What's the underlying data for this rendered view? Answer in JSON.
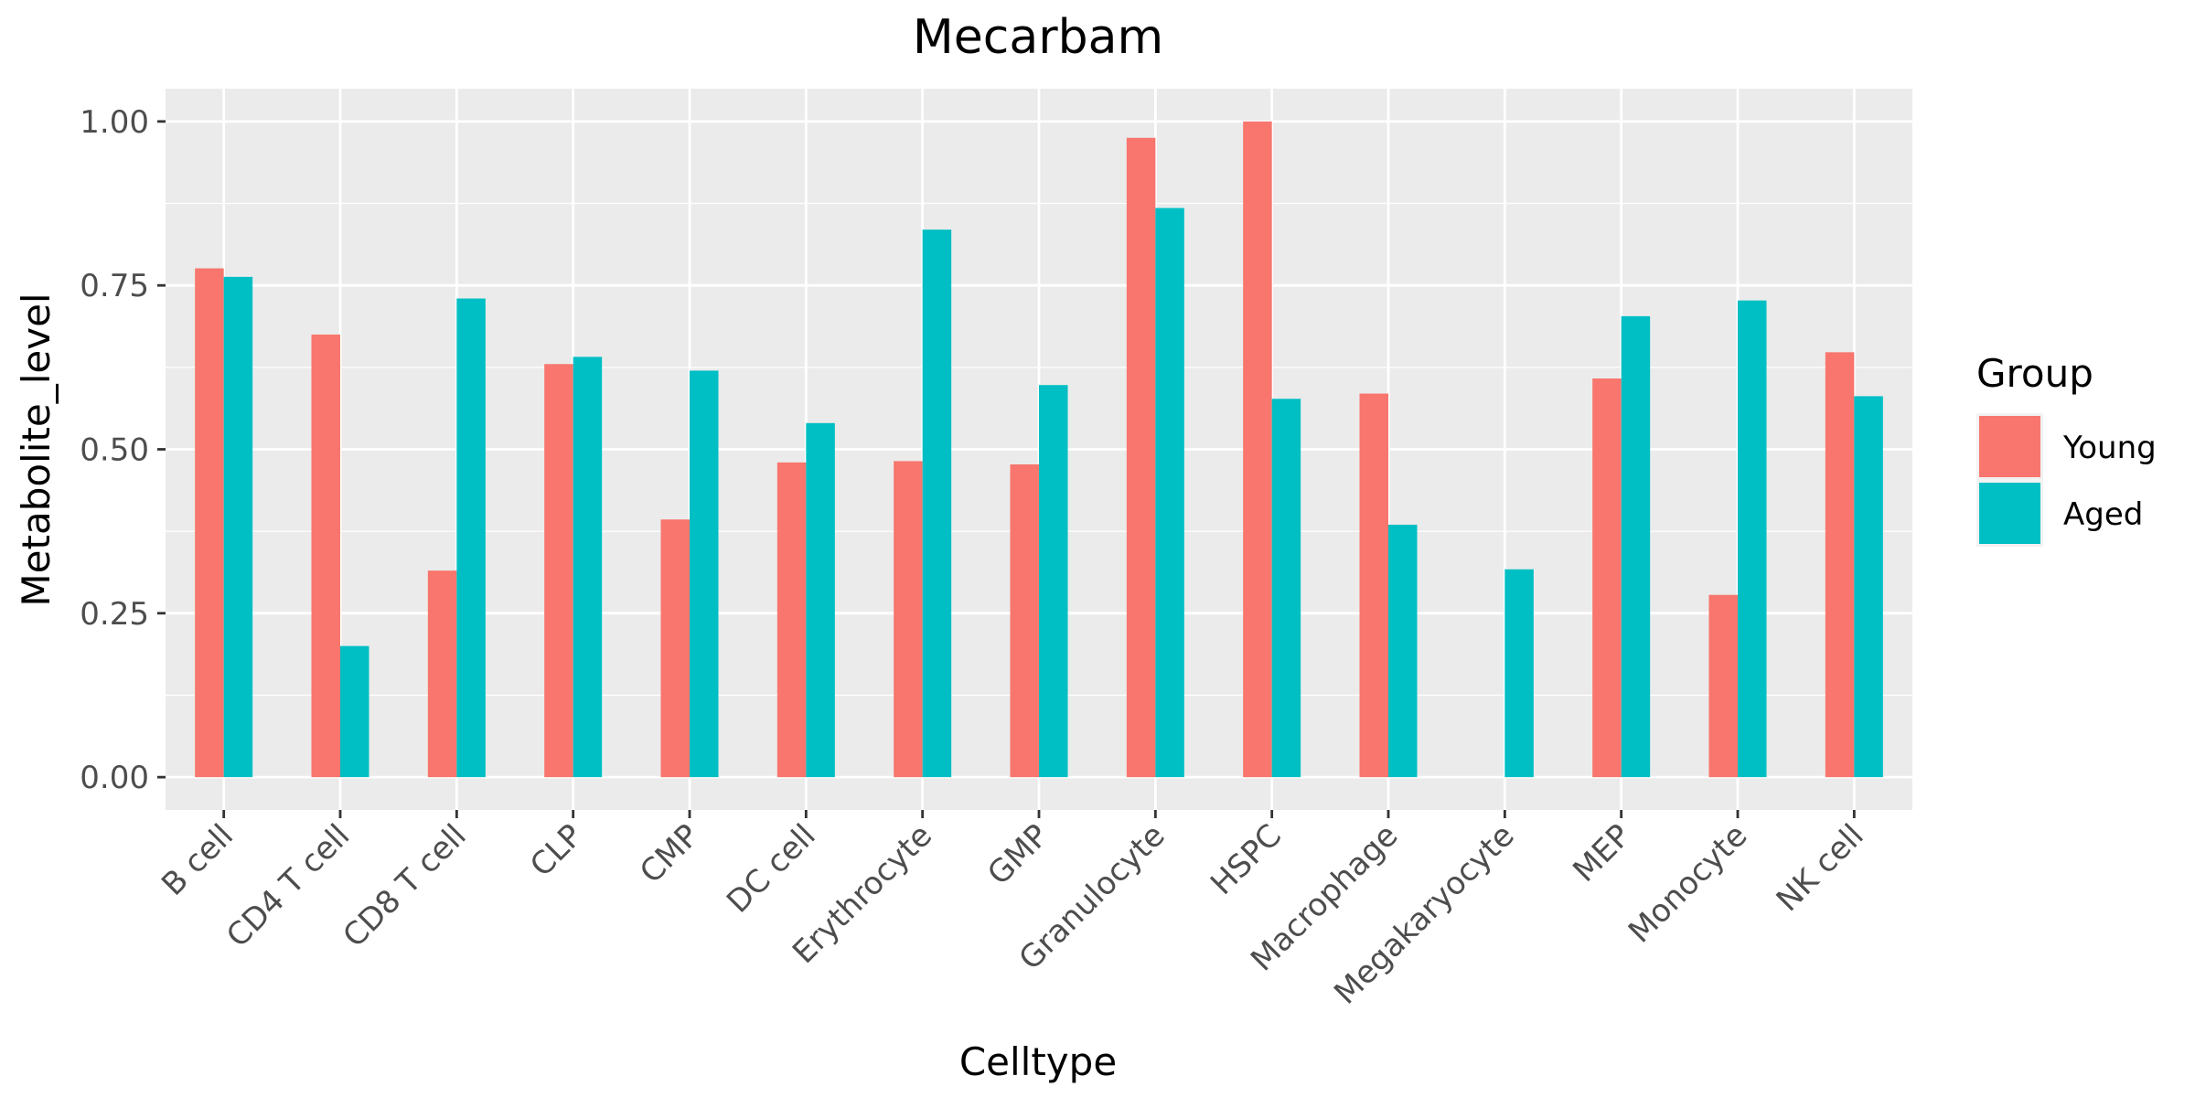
{
  "chart_data": {
    "type": "bar",
    "title": "Mecarbam",
    "xlabel": "Celltype",
    "ylabel": "Metabolite_level",
    "categories": [
      "B cell",
      "CD4 T cell",
      "CD8 T cell",
      "CLP",
      "CMP",
      "DC cell",
      "Erythrocyte",
      "GMP",
      "Granulocyte",
      "HSPC",
      "Macrophage",
      "Megakaryocyte",
      "MEP",
      "Monocyte",
      "NK cell"
    ],
    "series": [
      {
        "name": "Young",
        "color": "#F8766D",
        "values": [
          0.776,
          0.675,
          0.315,
          0.63,
          0.393,
          0.48,
          0.482,
          0.477,
          0.975,
          1.0,
          0.585,
          null,
          0.608,
          0.278,
          0.648
        ]
      },
      {
        "name": "Aged",
        "color": "#00BFC4",
        "values": [
          0.763,
          0.2,
          0.73,
          0.641,
          0.62,
          0.54,
          0.835,
          0.598,
          0.868,
          0.577,
          0.385,
          0.317,
          0.703,
          0.727,
          0.581
        ]
      }
    ],
    "ylim": [
      -0.05,
      1.05
    ],
    "yticks": [
      "0.00",
      "0.25",
      "0.50",
      "0.75",
      "1.00"
    ],
    "ytick_values": [
      0,
      0.25,
      0.5,
      0.75,
      1.0
    ],
    "grid": true,
    "legend": {
      "title": "Group",
      "position": "right"
    },
    "panel_background": "#EBEBEB",
    "grid_color": "#FFFFFF"
  }
}
